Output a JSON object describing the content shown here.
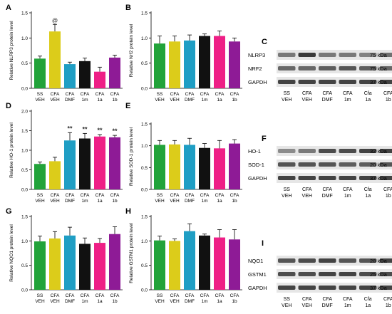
{
  "figure": {
    "colors": [
      "#22a33a",
      "#dccc1a",
      "#1f9ec4",
      "#111111",
      "#ee1f86",
      "#8e1b96"
    ],
    "categories_top": [
      "SS",
      "CFA",
      "CFA",
      "CFA",
      "CFA",
      "CFA"
    ],
    "categories_bottom": [
      "VEH",
      "VEH",
      "DMF",
      "1m",
      "1a",
      "1b"
    ],
    "blot_lane_top": [
      "SS",
      "CFA",
      "CFA",
      "CFA",
      "Cfa",
      "CFA"
    ],
    "blot_lane_bottom": [
      "VEH",
      "VEH",
      "DMF",
      "1m",
      "1a",
      "1b"
    ]
  },
  "chart_data": [
    {
      "panel": "A",
      "type": "bar",
      "categories": [
        "SS VEH",
        "CFA VEH",
        "CFA DMF",
        "CFA 1m",
        "CFA 1a",
        "CFA 1b"
      ],
      "values": [
        0.59,
        1.13,
        0.48,
        0.54,
        0.33,
        0.61
      ],
      "errors": [
        0.05,
        0.14,
        0.04,
        0.06,
        0.09,
        0.05
      ],
      "marks": [
        "",
        "@",
        "",
        "",
        "",
        ""
      ],
      "ylabel": "Relative NLRP3 protein level",
      "ylim": [
        0,
        1.5
      ],
      "yticks": [
        "0.0",
        "0.5",
        "1.0",
        "1.5"
      ]
    },
    {
      "panel": "B",
      "type": "bar",
      "categories": [
        "SS VEH",
        "CFA VEH",
        "CFA DMF",
        "CFA 1m",
        "CFA 1a",
        "CFA 1b"
      ],
      "values": [
        0.89,
        0.93,
        0.95,
        1.04,
        1.04,
        0.93
      ],
      "errors": [
        0.15,
        0.11,
        0.11,
        0.04,
        0.1,
        0.07
      ],
      "marks": [
        "",
        "",
        "",
        "",
        "",
        ""
      ],
      "ylabel": "Relative Nrf2 protein level",
      "ylim": [
        0,
        1.5
      ],
      "yticks": [
        "0.0",
        "0.5",
        "1.0",
        "1.5"
      ]
    },
    {
      "panel": "D",
      "type": "bar",
      "categories": [
        "SS VEH",
        "CFA VEH",
        "CFA DMF",
        "CFA 1m",
        "CFA 1a",
        "CFA 1b"
      ],
      "values": [
        0.65,
        0.72,
        1.25,
        1.3,
        1.35,
        1.33
      ],
      "errors": [
        0.05,
        0.1,
        0.2,
        0.13,
        0.05,
        0.05
      ],
      "marks": [
        "",
        "",
        "**",
        "**",
        "**",
        "**"
      ],
      "ylabel": "Relative HO-1 protein level",
      "ylim": [
        0,
        2.0
      ],
      "yticks": [
        "0.0",
        "0.5",
        "1.0",
        "1.5",
        "2.0"
      ]
    },
    {
      "panel": "E",
      "type": "bar",
      "categories": [
        "SS VEH",
        "CFA VEH",
        "CFA DMF",
        "CFA 1m",
        "CFA 1a",
        "CFA 1b"
      ],
      "values": [
        1.02,
        1.03,
        1.02,
        0.95,
        0.94,
        1.05
      ],
      "errors": [
        0.1,
        0.09,
        0.15,
        0.1,
        0.18,
        0.09
      ],
      "marks": [
        "",
        "",
        "",
        "",
        "",
        ""
      ],
      "ylabel": "Relative SOD-1 protein level",
      "ylim": [
        0,
        1.5
      ],
      "yticks": [
        "0.0",
        "0.5",
        "1.0",
        "1.5"
      ]
    },
    {
      "panel": "G",
      "type": "bar",
      "categories": [
        "SS VEH",
        "CFA VEH",
        "CFA DMF",
        "CFA 1m",
        "CFA 1a",
        "CFA 1b"
      ],
      "values": [
        0.99,
        1.05,
        1.11,
        0.94,
        0.96,
        1.14
      ],
      "errors": [
        0.11,
        0.14,
        0.17,
        0.12,
        0.09,
        0.15
      ],
      "marks": [
        "",
        "",
        "",
        "",
        "",
        ""
      ],
      "ylabel": "Relative NQO1 protein level",
      "ylim": [
        0,
        1.5
      ],
      "yticks": [
        "0.0",
        "0.5",
        "1.0",
        "1.5"
      ]
    },
    {
      "panel": "H",
      "type": "bar",
      "categories": [
        "SS VEH",
        "CFA VEH",
        "CFA DMF",
        "CFA 1m",
        "CFA 1a",
        "CFA 1b"
      ],
      "values": [
        1.01,
        1.0,
        1.2,
        1.11,
        1.07,
        1.03
      ],
      "errors": [
        0.09,
        0.04,
        0.15,
        0.03,
        0.16,
        0.2
      ],
      "marks": [
        "",
        "",
        "",
        "",
        "",
        ""
      ],
      "ylabel": "Relative GSTM1 protein level",
      "ylim": [
        0,
        1.5
      ],
      "yticks": [
        "0.0",
        "0.5",
        "1.0",
        "1.5"
      ]
    }
  ],
  "blots": [
    {
      "panel": "C",
      "rows": [
        {
          "label": "NLRP3",
          "kda": "75 kDa",
          "shade": [
            0.55,
            0.9,
            0.55,
            0.55,
            0.5,
            0.6
          ]
        },
        {
          "label": "NRF2",
          "kda": "75 kDa",
          "shade": [
            0.65,
            0.65,
            0.7,
            0.75,
            0.7,
            0.65
          ]
        },
        {
          "label": "GAPDH",
          "kda": "37 kDa",
          "shade": [
            0.85,
            0.85,
            0.85,
            0.85,
            0.85,
            0.85
          ]
        }
      ]
    },
    {
      "panel": "F",
      "rows": [
        {
          "label": "HO-1",
          "kda": "32 kDa",
          "shade": [
            0.45,
            0.55,
            0.8,
            0.8,
            0.85,
            0.85
          ]
        },
        {
          "label": "SOD-1",
          "kda": "20 kDa",
          "shade": [
            0.75,
            0.75,
            0.75,
            0.7,
            0.7,
            0.75
          ]
        },
        {
          "label": "GAPDH",
          "kda": "37 kDa",
          "shade": [
            0.85,
            0.85,
            0.85,
            0.85,
            0.85,
            0.85
          ]
        }
      ]
    },
    {
      "panel": "I",
      "rows": [
        {
          "label": "NQO1",
          "kda": "28 kDa",
          "shade": [
            0.75,
            0.8,
            0.85,
            0.75,
            0.75,
            0.85
          ]
        },
        {
          "label": "GSTM1",
          "kda": "25 kDa",
          "shade": [
            0.8,
            0.8,
            0.85,
            0.85,
            0.8,
            0.8
          ]
        },
        {
          "label": "GAPDH",
          "kda": "37 kDa",
          "shade": [
            0.85,
            0.85,
            0.85,
            0.85,
            0.85,
            0.85
          ]
        }
      ]
    }
  ]
}
